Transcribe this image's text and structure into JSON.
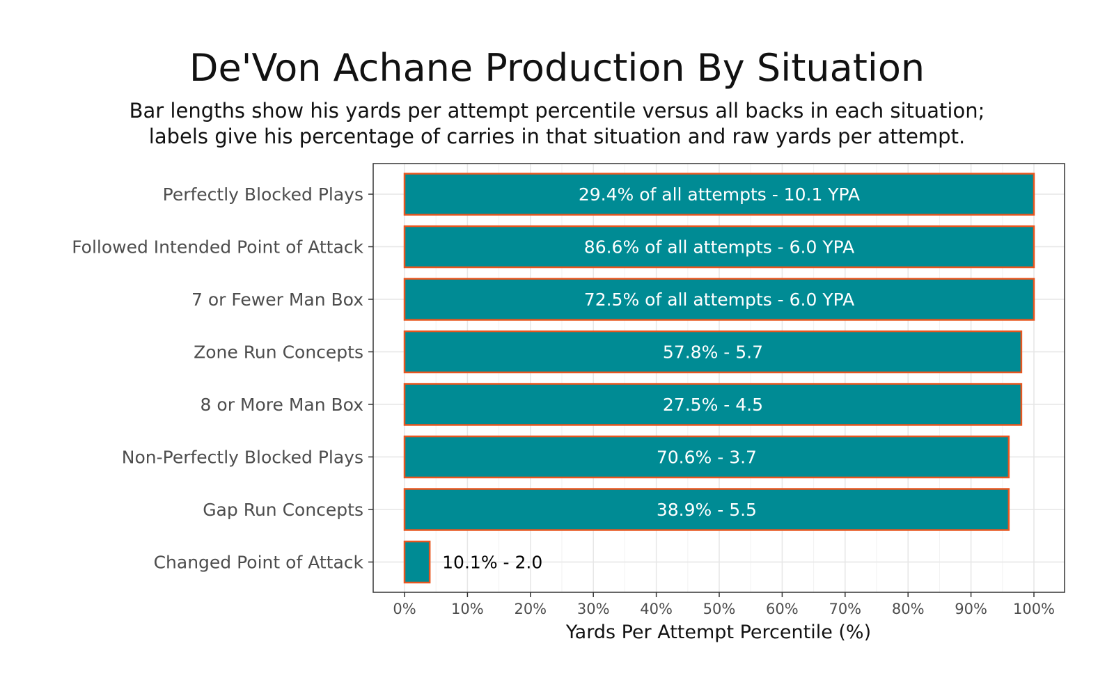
{
  "chart_data": {
    "type": "bar",
    "orientation": "horizontal",
    "title": "De'Von Achane Production By Situation",
    "subtitle_lines": [
      "Bar lengths show his yards per attempt percentile versus all backs in each situation;",
      "labels give his percentage of carries in that situation and raw yards per attempt."
    ],
    "xlabel": "Yards Per Attempt Percentile (%)",
    "ylabel": "",
    "xlim": [
      0,
      100
    ],
    "x_ticks": [
      0,
      10,
      20,
      30,
      40,
      50,
      60,
      70,
      80,
      90,
      100
    ],
    "x_tick_labels": [
      "0%",
      "10%",
      "20%",
      "30%",
      "40%",
      "50%",
      "60%",
      "70%",
      "80%",
      "90%",
      "100%"
    ],
    "grid": true,
    "categories": [
      "Perfectly Blocked Plays",
      "Followed Intended Point of Attack",
      "7 or Fewer Man Box",
      "Zone Run Concepts",
      "8 or More Man Box",
      "Non-Perfectly Blocked Plays",
      "Gap Run Concepts",
      "Changed Point of Attack"
    ],
    "values": [
      100,
      100,
      100,
      98,
      98,
      96,
      96,
      4
    ],
    "labels": [
      "29.4% of all attempts - 10.1 YPA",
      "86.6% of all attempts - 6.0 YPA",
      "72.5% of all attempts - 6.0 YPA",
      "57.8% - 5.7",
      "27.5% - 4.5",
      "70.6% - 3.7",
      "38.9% - 5.5",
      "10.1% - 2.0"
    ],
    "colors": {
      "bar_fill": "#008B94",
      "bar_outline": "#E8561F",
      "label_inside": "#ffffff",
      "label_outside": "#000000",
      "grid": "#e6e6e6",
      "panel_border": "#333333"
    }
  }
}
